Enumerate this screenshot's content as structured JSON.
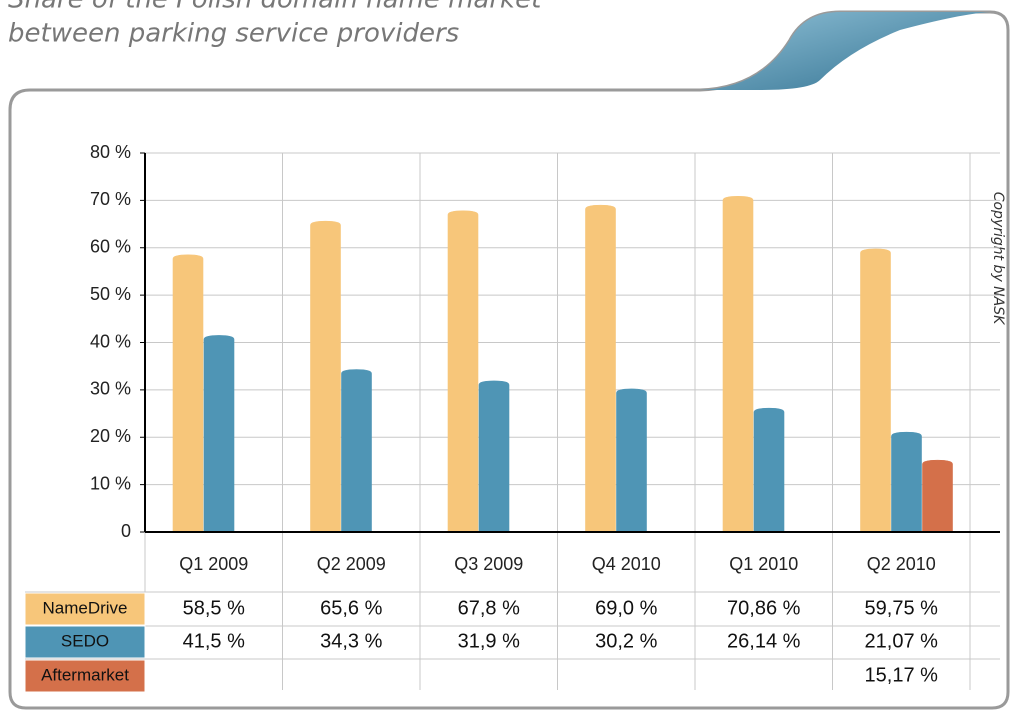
{
  "chart_data": {
    "type": "bar",
    "title": [
      "Share of the Polish domain name market",
      "between parking service providers"
    ],
    "copyright": "Copyright by NASK",
    "categories": [
      "Q1 2009",
      "Q2 2009",
      "Q3 2009",
      "Q4 2010",
      "Q1 2010",
      "Q2 2010"
    ],
    "series": [
      {
        "name": "NameDrive",
        "color": "#f7c67a",
        "values": [
          58.5,
          65.6,
          67.8,
          69.0,
          70.86,
          59.75
        ],
        "value_labels": [
          "58,5 %",
          "65,6 %",
          "67,8 %",
          "69,0 %",
          "70,86 %",
          "59,75 %"
        ]
      },
      {
        "name": "SEDO",
        "color": "#4f95b5",
        "values": [
          41.5,
          34.3,
          31.9,
          30.2,
          26.14,
          21.07
        ],
        "value_labels": [
          "41,5 %",
          "34,3 %",
          "31,9 %",
          "30,2 %",
          "26,14 %",
          "21,07 %"
        ]
      },
      {
        "name": "Aftermarket",
        "color": "#d4704a",
        "values": [
          null,
          null,
          null,
          null,
          null,
          15.17
        ],
        "value_labels": [
          null,
          null,
          null,
          null,
          null,
          "15,17 %"
        ]
      }
    ],
    "ylim": [
      0,
      80
    ],
    "yticks": [
      0,
      {
        "value": 10,
        "label": "10 %"
      },
      {
        "value": 20,
        "label": "20 %"
      },
      {
        "value": 30,
        "label": "30 %"
      },
      {
        "value": 40,
        "label": "40 %"
      },
      {
        "value": 50,
        "label": "50 %"
      },
      {
        "value": 60,
        "label": "60 %"
      },
      {
        "value": 70,
        "label": "70 %"
      },
      {
        "value": 80,
        "label": "80 %"
      }
    ],
    "grid": true
  }
}
